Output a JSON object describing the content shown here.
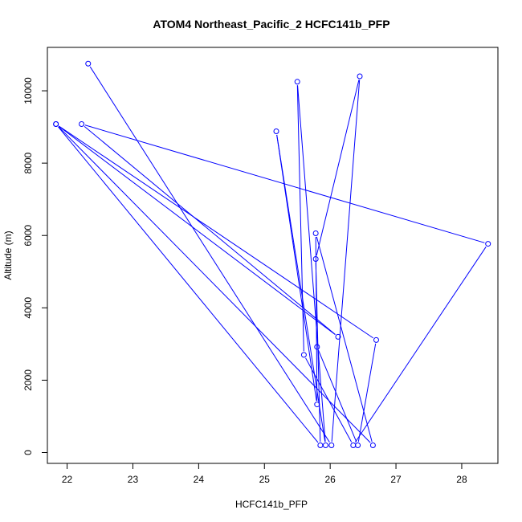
{
  "chart_data": {
    "type": "line",
    "title": "ATOM4 Northeast_Pacific_2 HCFC141b_PFP",
    "xlabel": "HCFC141b_PFP",
    "ylabel": "Altitude (m)",
    "xlim": [
      21.7,
      28.55
    ],
    "ylim": [
      -300,
      11200
    ],
    "x_ticks": [
      22,
      23,
      24,
      25,
      26,
      27,
      28
    ],
    "x_tick_labels": [
      "22",
      "23",
      "24",
      "25",
      "26",
      "27",
      "28"
    ],
    "y_ticks": [
      0,
      2000,
      4000,
      6000,
      8000,
      10000
    ],
    "y_tick_labels": [
      "0",
      "2000",
      "4000",
      "6000",
      "8000",
      "10000"
    ],
    "series_color": "#0000ff",
    "marker": "open-circle",
    "grid": false,
    "legend": "none",
    "points": [
      {
        "x": 22.32,
        "y": 10750
      },
      {
        "x": 26.02,
        "y": 200
      },
      {
        "x": 26.45,
        "y": 10400
      },
      {
        "x": 25.78,
        "y": 5350
      },
      {
        "x": 25.85,
        "y": 200
      },
      {
        "x": 21.83,
        "y": 9080
      },
      {
        "x": 26.12,
        "y": 3200
      },
      {
        "x": 22.22,
        "y": 9080
      },
      {
        "x": 28.4,
        "y": 5770
      },
      {
        "x": 26.35,
        "y": 200
      },
      {
        "x": 25.6,
        "y": 2700
      },
      {
        "x": 25.5,
        "y": 10250
      },
      {
        "x": 25.93,
        "y": 200
      },
      {
        "x": 25.18,
        "y": 8880
      },
      {
        "x": 25.8,
        "y": 1330
      },
      {
        "x": 25.78,
        "y": 6060
      },
      {
        "x": 26.65,
        "y": 200
      },
      {
        "x": 21.83,
        "y": 9080
      },
      {
        "x": 26.7,
        "y": 3110
      },
      {
        "x": 26.42,
        "y": 200
      },
      {
        "x": 25.8,
        "y": 2920
      }
    ]
  }
}
